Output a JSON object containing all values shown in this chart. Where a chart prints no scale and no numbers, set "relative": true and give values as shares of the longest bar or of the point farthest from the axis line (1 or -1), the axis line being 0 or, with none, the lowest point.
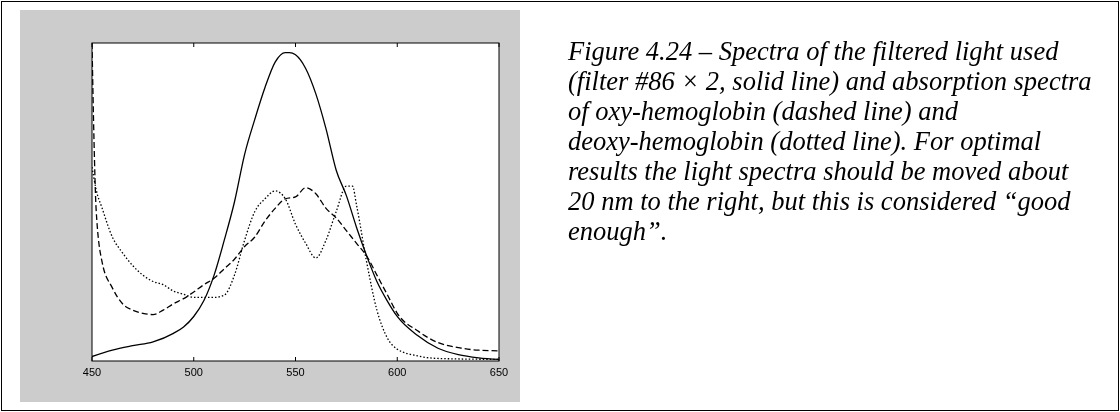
{
  "chart_data": {
    "type": "line",
    "relative": true,
    "xlim": [
      450,
      650
    ],
    "xticks": [
      450,
      500,
      550,
      600,
      650
    ],
    "annotations": [
      "Figure 4.24 – Spectra of the filtered light used (filter #86 × 2, solid line) and absorption spectra of oxy-hemoglobin (dashed line) and deoxy-hemoglobin (dotted line). For optimal results the light spectra should be moved about 20 nm to the right, but this is considered “good enough”."
    ],
    "series": [
      {
        "color": "#000000",
        "line_style": "solid",
        "x": [
          450,
          460,
          470,
          480,
          490,
          495,
          500,
          505,
          510,
          515,
          520,
          525,
          530,
          535,
          540,
          545,
          547,
          550,
          555,
          560,
          565,
          570,
          575,
          580,
          585,
          590,
          595,
          600,
          610,
          620,
          630,
          640,
          650
        ],
        "values": [
          0.014,
          0.034,
          0.048,
          0.06,
          0.087,
          0.107,
          0.14,
          0.19,
          0.27,
          0.38,
          0.5,
          0.65,
          0.76,
          0.86,
          0.94,
          0.97,
          0.97,
          0.963,
          0.92,
          0.84,
          0.73,
          0.6,
          0.52,
          0.42,
          0.33,
          0.25,
          0.19,
          0.14,
          0.08,
          0.04,
          0.02,
          0.01,
          0.005
        ]
      },
      {
        "color": "#000000",
        "line_style": "dashed",
        "x": [
          450,
          451,
          452,
          455,
          460,
          465,
          470,
          475,
          480,
          485,
          490,
          495,
          500,
          505,
          510,
          515,
          520,
          525,
          530,
          535,
          540,
          545,
          550,
          555,
          560,
          565,
          570,
          575,
          580,
          585,
          590,
          595,
          600,
          610,
          620,
          630,
          640,
          650
        ],
        "values": [
          1.0,
          0.69,
          0.48,
          0.31,
          0.23,
          0.18,
          0.16,
          0.15,
          0.146,
          0.16,
          0.18,
          0.196,
          0.217,
          0.24,
          0.26,
          0.29,
          0.32,
          0.36,
          0.39,
          0.44,
          0.48,
          0.51,
          0.516,
          0.545,
          0.526,
          0.48,
          0.45,
          0.41,
          0.37,
          0.33,
          0.27,
          0.21,
          0.15,
          0.095,
          0.058,
          0.042,
          0.034,
          0.032
        ]
      },
      {
        "color": "#000000",
        "line_style": "dotted",
        "x": [
          450,
          452,
          455,
          460,
          465,
          470,
          475,
          480,
          485,
          490,
          495,
          500,
          505,
          510,
          515,
          520,
          525,
          530,
          535,
          540,
          545,
          550,
          555,
          560,
          565,
          570,
          575,
          578,
          580,
          585,
          590,
          595,
          600,
          610,
          620,
          650
        ],
        "values": [
          0.61,
          0.54,
          0.48,
          0.39,
          0.34,
          0.3,
          0.27,
          0.25,
          0.24,
          0.22,
          0.21,
          0.2,
          0.2,
          0.2,
          0.207,
          0.27,
          0.38,
          0.47,
          0.51,
          0.535,
          0.51,
          0.43,
          0.37,
          0.324,
          0.38,
          0.47,
          0.55,
          0.55,
          0.49,
          0.31,
          0.16,
          0.074,
          0.037,
          0.016,
          0.008,
          0.005
        ]
      }
    ]
  }
}
